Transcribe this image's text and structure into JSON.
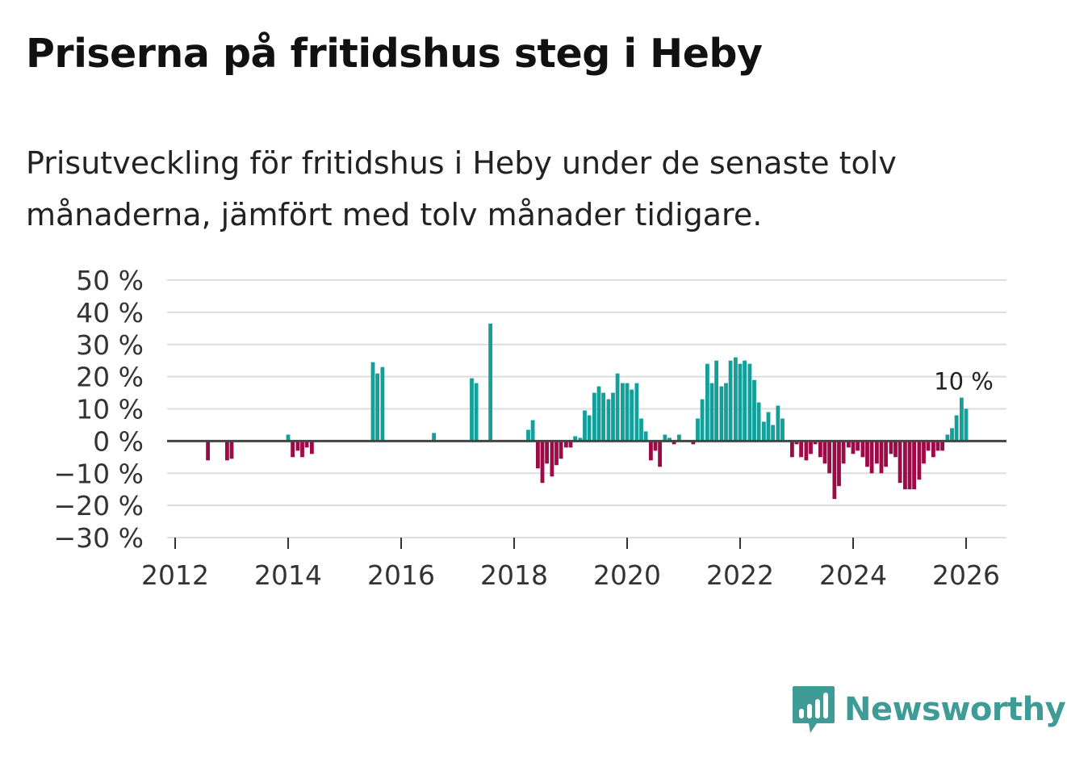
{
  "header": {
    "title": "Priserna på fritidshus steg i Heby",
    "subtitle": "Prisutveckling för fritidshus i Heby under de senaste tolv månaderna, jämfört med tolv månader tidigare."
  },
  "branding": {
    "logo_text": "Newsworthy",
    "logo_icon": "bar-chart-speech-bubble-icon",
    "color": "#3f9b96"
  },
  "colors": {
    "positive": "#13a09a",
    "negative": "#9c0b47",
    "grid": "#dddddd",
    "zero_line": "#444444"
  },
  "chart_data": {
    "type": "bar",
    "x_unit": "year (monthly bars)",
    "y_unit": "%",
    "ylim": [
      -30,
      50
    ],
    "y_ticks": [
      50,
      40,
      30,
      20,
      10,
      0,
      -10,
      -20,
      -30
    ],
    "y_tick_labels": [
      "50 %",
      "40 %",
      "30 %",
      "20 %",
      "10 %",
      "0 %",
      "−10 %",
      "−20 %",
      "−30 %"
    ],
    "x_ticks": [
      2012,
      2014,
      2016,
      2018,
      2020,
      2022,
      2024,
      2026
    ],
    "x_tick_labels": [
      "2012",
      "2014",
      "2016",
      "2018",
      "2020",
      "2022",
      "2024",
      "2026"
    ],
    "grid": true,
    "annotation": {
      "text": "10 %",
      "x": 2026.0,
      "y": 10
    },
    "values": [
      {
        "x": 2012.58,
        "y": -6
      },
      {
        "x": 2012.92,
        "y": -6
      },
      {
        "x": 2013.0,
        "y": -5.5
      },
      {
        "x": 2014.0,
        "y": 2
      },
      {
        "x": 2014.08,
        "y": -5
      },
      {
        "x": 2014.17,
        "y": -3
      },
      {
        "x": 2014.25,
        "y": -5
      },
      {
        "x": 2014.33,
        "y": -2
      },
      {
        "x": 2014.42,
        "y": -4
      },
      {
        "x": 2015.5,
        "y": 24.5
      },
      {
        "x": 2015.58,
        "y": 21
      },
      {
        "x": 2015.67,
        "y": 23
      },
      {
        "x": 2016.58,
        "y": 2.5
      },
      {
        "x": 2017.25,
        "y": 19.5
      },
      {
        "x": 2017.33,
        "y": 18
      },
      {
        "x": 2017.58,
        "y": 36.5
      },
      {
        "x": 2018.25,
        "y": 3.5
      },
      {
        "x": 2018.33,
        "y": 6.5
      },
      {
        "x": 2018.42,
        "y": -8.5
      },
      {
        "x": 2018.5,
        "y": -13
      },
      {
        "x": 2018.58,
        "y": -7
      },
      {
        "x": 2018.67,
        "y": -11
      },
      {
        "x": 2018.75,
        "y": -7.5
      },
      {
        "x": 2018.83,
        "y": -5.5
      },
      {
        "x": 2018.92,
        "y": -2
      },
      {
        "x": 2019.0,
        "y": -2
      },
      {
        "x": 2019.08,
        "y": 1.5
      },
      {
        "x": 2019.17,
        "y": 1
      },
      {
        "x": 2019.25,
        "y": 9.5
      },
      {
        "x": 2019.33,
        "y": 8
      },
      {
        "x": 2019.42,
        "y": 15
      },
      {
        "x": 2019.5,
        "y": 17
      },
      {
        "x": 2019.58,
        "y": 15
      },
      {
        "x": 2019.67,
        "y": 13
      },
      {
        "x": 2019.75,
        "y": 15
      },
      {
        "x": 2019.83,
        "y": 21
      },
      {
        "x": 2019.92,
        "y": 18
      },
      {
        "x": 2020.0,
        "y": 18
      },
      {
        "x": 2020.08,
        "y": 16
      },
      {
        "x": 2020.17,
        "y": 18
      },
      {
        "x": 2020.25,
        "y": 7
      },
      {
        "x": 2020.33,
        "y": 3
      },
      {
        "x": 2020.42,
        "y": -6
      },
      {
        "x": 2020.5,
        "y": -3
      },
      {
        "x": 2020.58,
        "y": -8
      },
      {
        "x": 2020.67,
        "y": 2
      },
      {
        "x": 2020.75,
        "y": 1
      },
      {
        "x": 2020.83,
        "y": -1
      },
      {
        "x": 2020.92,
        "y": 2
      },
      {
        "x": 2021.17,
        "y": -1
      },
      {
        "x": 2021.25,
        "y": 7
      },
      {
        "x": 2021.33,
        "y": 13
      },
      {
        "x": 2021.42,
        "y": 24
      },
      {
        "x": 2021.5,
        "y": 18
      },
      {
        "x": 2021.58,
        "y": 25
      },
      {
        "x": 2021.67,
        "y": 17
      },
      {
        "x": 2021.75,
        "y": 18
      },
      {
        "x": 2021.83,
        "y": 25
      },
      {
        "x": 2021.92,
        "y": 26
      },
      {
        "x": 2022.0,
        "y": 24
      },
      {
        "x": 2022.08,
        "y": 25
      },
      {
        "x": 2022.17,
        "y": 24
      },
      {
        "x": 2022.25,
        "y": 19
      },
      {
        "x": 2022.33,
        "y": 12
      },
      {
        "x": 2022.42,
        "y": 6
      },
      {
        "x": 2022.5,
        "y": 9
      },
      {
        "x": 2022.58,
        "y": 5
      },
      {
        "x": 2022.67,
        "y": 11
      },
      {
        "x": 2022.75,
        "y": 7
      },
      {
        "x": 2022.92,
        "y": -5
      },
      {
        "x": 2023.0,
        "y": -1
      },
      {
        "x": 2023.08,
        "y": -5
      },
      {
        "x": 2023.17,
        "y": -6
      },
      {
        "x": 2023.25,
        "y": -4
      },
      {
        "x": 2023.33,
        "y": -1
      },
      {
        "x": 2023.42,
        "y": -5
      },
      {
        "x": 2023.5,
        "y": -7
      },
      {
        "x": 2023.58,
        "y": -10
      },
      {
        "x": 2023.67,
        "y": -18
      },
      {
        "x": 2023.75,
        "y": -14
      },
      {
        "x": 2023.83,
        "y": -7
      },
      {
        "x": 2023.92,
        "y": -2
      },
      {
        "x": 2024.0,
        "y": -4
      },
      {
        "x": 2024.08,
        "y": -3
      },
      {
        "x": 2024.17,
        "y": -5
      },
      {
        "x": 2024.25,
        "y": -8
      },
      {
        "x": 2024.33,
        "y": -10
      },
      {
        "x": 2024.42,
        "y": -7
      },
      {
        "x": 2024.5,
        "y": -10
      },
      {
        "x": 2024.58,
        "y": -8
      },
      {
        "x": 2024.67,
        "y": -4
      },
      {
        "x": 2024.75,
        "y": -5
      },
      {
        "x": 2024.83,
        "y": -13
      },
      {
        "x": 2024.92,
        "y": -15
      },
      {
        "x": 2025.0,
        "y": -15
      },
      {
        "x": 2025.08,
        "y": -15
      },
      {
        "x": 2025.17,
        "y": -12
      },
      {
        "x": 2025.25,
        "y": -7
      },
      {
        "x": 2025.33,
        "y": -3
      },
      {
        "x": 2025.42,
        "y": -5
      },
      {
        "x": 2025.5,
        "y": -3
      },
      {
        "x": 2025.58,
        "y": -3
      },
      {
        "x": 2025.67,
        "y": 2
      },
      {
        "x": 2025.75,
        "y": 4
      },
      {
        "x": 2025.83,
        "y": 8
      },
      {
        "x": 2025.92,
        "y": 13.5
      },
      {
        "x": 2026.0,
        "y": 10
      }
    ]
  }
}
